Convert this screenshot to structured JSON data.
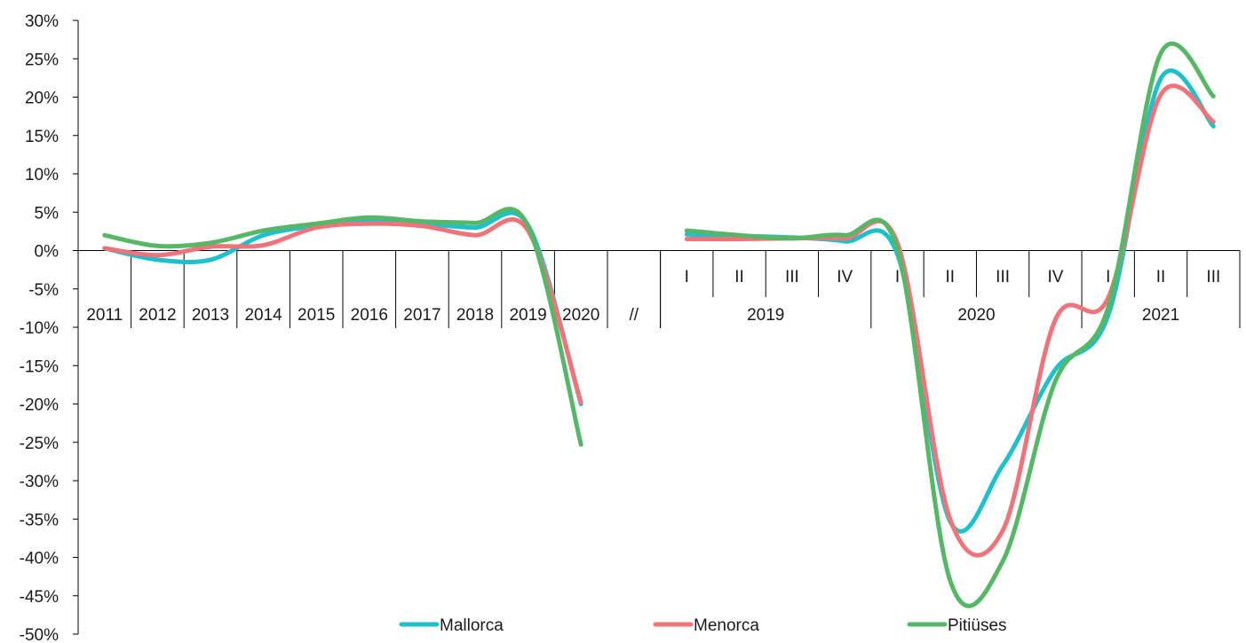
{
  "chart_data": {
    "type": "line",
    "title": "",
    "xlabel": "",
    "ylabel": "",
    "ylim": [
      -50,
      30
    ],
    "yticks": [
      "30%",
      "25%",
      "20%",
      "15%",
      "10%",
      "5%",
      "0%",
      "-5%",
      "-10%",
      "-15%",
      "-20%",
      "-25%",
      "-30%",
      "-35%",
      "-40%",
      "-45%",
      "-50%"
    ],
    "grid": false,
    "legend_position": "bottom",
    "separator_label": "//",
    "annual": {
      "categories": [
        "2011",
        "2012",
        "2013",
        "2014",
        "2015",
        "2016",
        "2017",
        "2018",
        "2019",
        "2020"
      ],
      "series": [
        {
          "name": "Mallorca",
          "values": [
            0.3,
            -1.2,
            -1.2,
            2.0,
            3.2,
            3.8,
            3.5,
            3.0,
            3.3,
            -20.0
          ]
        },
        {
          "name": "Menorca",
          "values": [
            0.3,
            -0.6,
            0.5,
            0.7,
            3.0,
            3.5,
            3.2,
            2.0,
            2.6,
            -19.8
          ]
        },
        {
          "name": "Pitiüses",
          "values": [
            2.0,
            0.6,
            1.0,
            2.6,
            3.5,
            4.3,
            3.8,
            3.6,
            3.2,
            -25.3
          ]
        }
      ]
    },
    "quarterly": {
      "quarters": [
        "I",
        "II",
        "III",
        "IV",
        "I",
        "II",
        "III",
        "IV",
        "I",
        "II",
        "III"
      ],
      "years": [
        {
          "label": "2019",
          "quarters": 4
        },
        {
          "label": "2020",
          "quarters": 4
        },
        {
          "label": "2021",
          "quarters": 3
        }
      ],
      "series": [
        {
          "name": "Mallorca",
          "values": [
            2.1,
            1.9,
            1.7,
            1.2,
            -0.5,
            -35.3,
            -28.0,
            -15.5,
            -8.5,
            22.4,
            16.2
          ]
        },
        {
          "name": "Menorca",
          "values": [
            1.5,
            1.5,
            1.6,
            1.6,
            1.0,
            -35.0,
            -36.5,
            -9.0,
            -6.2,
            20.3,
            16.8
          ]
        },
        {
          "name": "Pitiüses",
          "values": [
            2.6,
            2.0,
            1.6,
            2.0,
            0.2,
            -43.0,
            -40.5,
            -17.0,
            -7.5,
            25.7,
            20.1
          ]
        }
      ]
    },
    "colors": {
      "Mallorca": "#1ec0cc",
      "Menorca": "#f0737a",
      "Pitiüses": "#56b866"
    },
    "legend": [
      "Mallorca",
      "Menorca",
      "Pitiüses"
    ]
  }
}
